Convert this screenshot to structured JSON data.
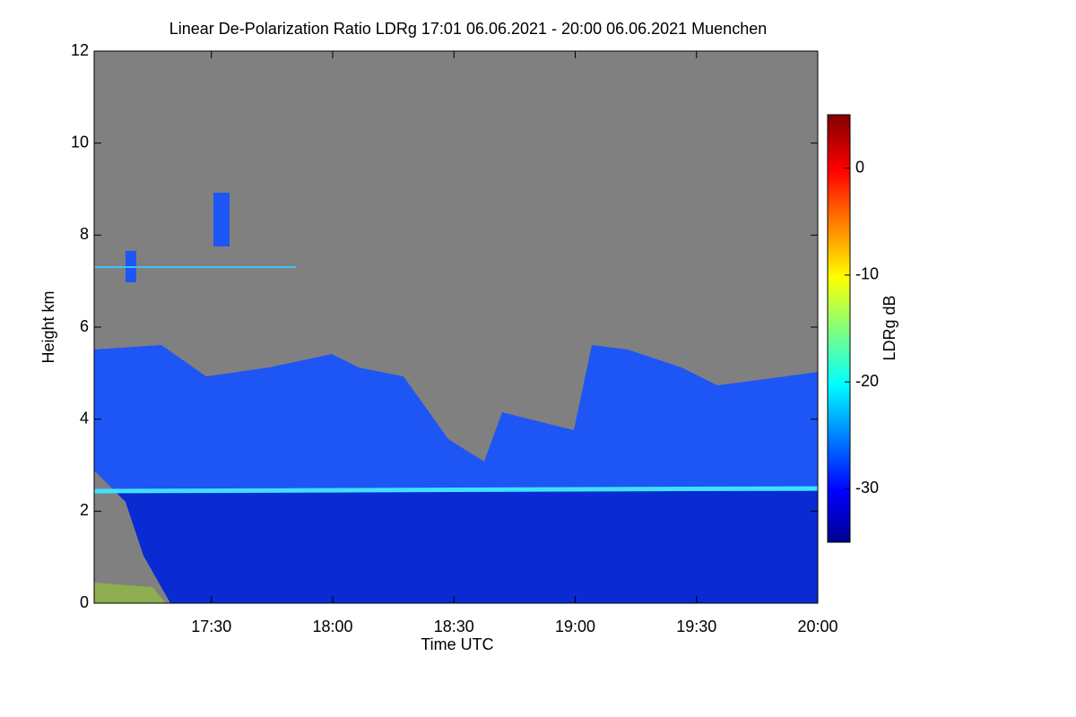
{
  "chart_data": {
    "type": "heatmap",
    "title": "Linear De-Polarization Ratio LDRg   17:01 06.06.2021 - 20:00 06.06.2021 Muenchen",
    "x_label": "Time UTC",
    "y_label": "Height km",
    "colorbar_label": "LDRg dB",
    "xlim": [
      1,
      180
    ],
    "xticks": [
      {
        "value": 30,
        "label": "17:30"
      },
      {
        "value": 60,
        "label": "18:00"
      },
      {
        "value": 90,
        "label": "18:30"
      },
      {
        "value": 120,
        "label": "19:00"
      },
      {
        "value": 150,
        "label": "19:30"
      },
      {
        "value": 180,
        "label": "20:00"
      }
    ],
    "ylim": [
      0,
      12
    ],
    "yticks": [
      0,
      2,
      4,
      6,
      8,
      10,
      12
    ],
    "clim": [
      -35,
      5
    ],
    "cticks": [
      0,
      -10,
      -20,
      -30
    ]
  }
}
